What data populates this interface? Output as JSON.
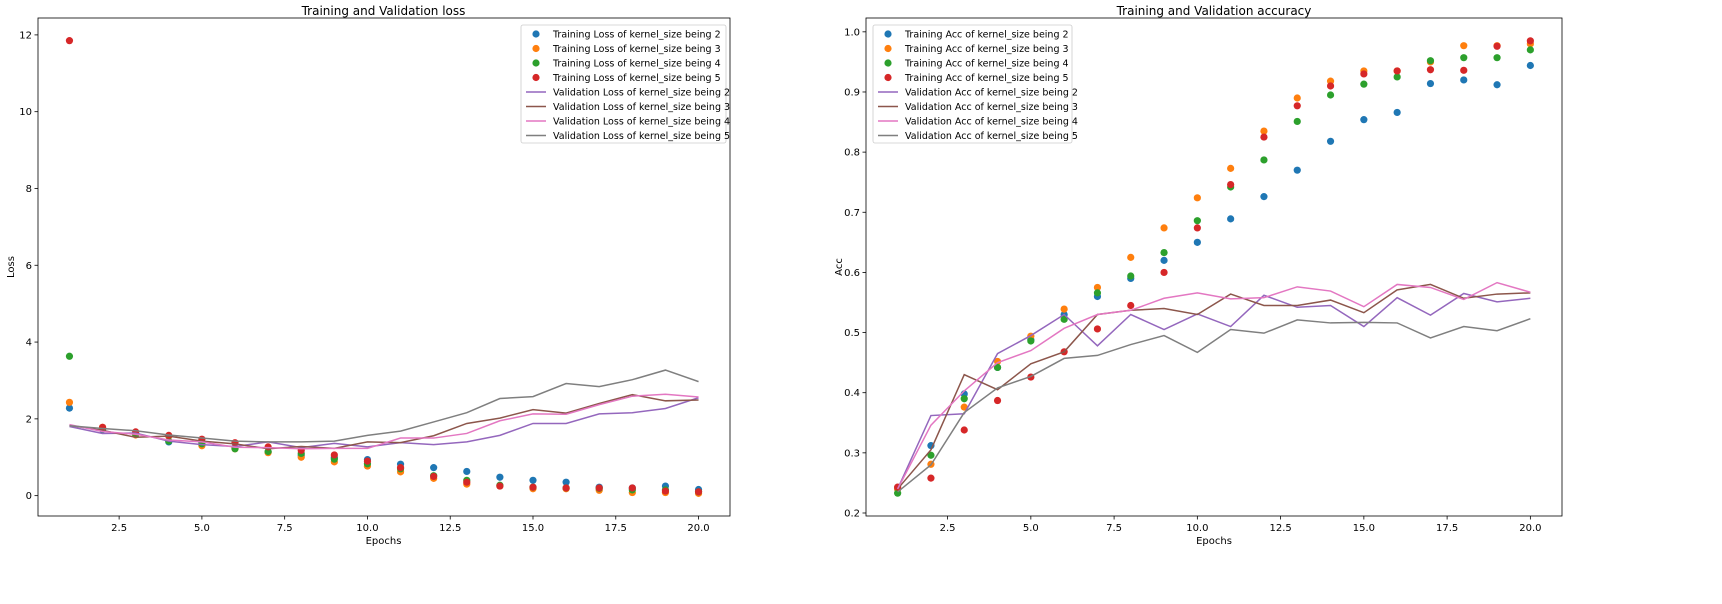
{
  "chart_data": [
    {
      "type": "scatter+line",
      "title": "Training and Validation loss",
      "xlabel": "Epochs",
      "ylabel": "Loss",
      "xlim": [
        0.05,
        20.95
      ],
      "ylim": [
        -0.53,
        12.44
      ],
      "xticks": [
        2.5,
        5.0,
        7.5,
        10.0,
        12.5,
        15.0,
        17.5,
        20.0
      ],
      "xtick_labels": [
        "2.5",
        "5.0",
        "7.5",
        "10.0",
        "12.5",
        "15.0",
        "17.5",
        "20.0"
      ],
      "yticks": [
        0,
        2,
        4,
        6,
        8,
        10,
        12
      ],
      "ytick_labels": [
        "0",
        "2",
        "4",
        "6",
        "8",
        "10",
        "12"
      ],
      "grid": false,
      "legend_position": "top-right",
      "x": [
        1,
        2,
        3,
        4,
        5,
        6,
        7,
        8,
        9,
        10,
        11,
        12,
        13,
        14,
        15,
        16,
        17,
        18,
        19,
        20
      ],
      "series": [
        {
          "name": "Training Loss of kernel_size being 2",
          "style": "markers",
          "color": "#1f77b4",
          "values": [
            2.28,
            1.72,
            1.62,
            1.4,
            1.38,
            1.25,
            1.14,
            1.05,
            0.99,
            0.94,
            0.82,
            0.73,
            0.63,
            0.48,
            0.4,
            0.35,
            0.22,
            0.2,
            0.25,
            0.16
          ]
        },
        {
          "name": "Training Loss of kernel_size being 3",
          "style": "markers",
          "color": "#ff7f0e",
          "values": [
            2.43,
            1.78,
            1.58,
            1.55,
            1.3,
            1.22,
            1.12,
            1.0,
            0.88,
            0.77,
            0.62,
            0.45,
            0.3,
            0.25,
            0.18,
            0.18,
            0.14,
            0.08,
            0.08,
            0.06
          ]
        },
        {
          "name": "Training Loss of kernel_size being 4",
          "style": "markers",
          "color": "#2ca02c",
          "values": [
            3.63,
            1.74,
            1.6,
            1.42,
            1.35,
            1.22,
            1.15,
            1.1,
            0.95,
            0.83,
            0.7,
            0.52,
            0.4,
            0.27,
            0.22,
            0.2,
            0.19,
            0.15,
            0.15,
            0.1
          ]
        },
        {
          "name": "Training Loss of kernel_size being 5",
          "style": "markers",
          "color": "#d62728",
          "values": [
            11.85,
            1.78,
            1.66,
            1.57,
            1.47,
            1.38,
            1.27,
            1.18,
            1.06,
            0.9,
            0.73,
            0.5,
            0.35,
            0.25,
            0.22,
            0.2,
            0.2,
            0.2,
            0.12,
            0.1
          ]
        },
        {
          "name": "Validation Loss of kernel_size being 2",
          "style": "line",
          "color": "#9467bd",
          "values": [
            1.8,
            1.62,
            1.63,
            1.42,
            1.33,
            1.28,
            1.4,
            1.25,
            1.36,
            1.27,
            1.38,
            1.33,
            1.4,
            1.57,
            1.88,
            1.88,
            2.13,
            2.16,
            2.27,
            2.55
          ]
        },
        {
          "name": "Validation Loss of kernel_size being 3",
          "style": "line",
          "color": "#8c564b",
          "values": [
            1.83,
            1.7,
            1.52,
            1.55,
            1.42,
            1.35,
            1.22,
            1.28,
            1.23,
            1.4,
            1.38,
            1.56,
            1.88,
            2.02,
            2.24,
            2.15,
            2.4,
            2.63,
            2.47,
            2.49
          ]
        },
        {
          "name": "Validation Loss of kernel_size being 4",
          "style": "line",
          "color": "#e377c2",
          "values": [
            1.85,
            1.67,
            1.6,
            1.45,
            1.4,
            1.26,
            1.25,
            1.22,
            1.23,
            1.23,
            1.5,
            1.5,
            1.62,
            1.95,
            2.13,
            2.12,
            2.37,
            2.59,
            2.64,
            2.57
          ]
        },
        {
          "name": "Validation Loss of kernel_size being 5",
          "style": "line",
          "color": "#7f7f7f",
          "values": [
            1.82,
            1.75,
            1.69,
            1.58,
            1.5,
            1.42,
            1.4,
            1.4,
            1.42,
            1.57,
            1.68,
            1.92,
            2.16,
            2.53,
            2.58,
            2.92,
            2.84,
            3.02,
            3.27,
            2.97
          ]
        }
      ]
    },
    {
      "type": "scatter+line",
      "title": "Training and Validation accuracy",
      "xlabel": "Epochs",
      "ylabel": "Acc",
      "xlim": [
        0.05,
        20.95
      ],
      "ylim": [
        0.195,
        1.023
      ],
      "xticks": [
        2.5,
        5.0,
        7.5,
        10.0,
        12.5,
        15.0,
        17.5,
        20.0
      ],
      "xtick_labels": [
        "2.5",
        "5.0",
        "7.5",
        "10.0",
        "12.5",
        "15.0",
        "17.5",
        "20.0"
      ],
      "yticks": [
        0.2,
        0.3,
        0.4,
        0.5,
        0.6,
        0.7,
        0.8,
        0.9,
        1.0
      ],
      "ytick_labels": [
        "0.2",
        "0.3",
        "0.4",
        "0.5",
        "0.6",
        "0.7",
        "0.8",
        "0.9",
        "1.0"
      ],
      "grid": false,
      "legend_position": "top-left",
      "x": [
        1,
        2,
        3,
        4,
        5,
        6,
        7,
        8,
        9,
        10,
        11,
        12,
        13,
        14,
        15,
        16,
        17,
        18,
        19,
        20
      ],
      "series": [
        {
          "name": "Training Acc of kernel_size being 2",
          "style": "markers",
          "color": "#1f77b4",
          "values": [
            0.24,
            0.312,
            0.398,
            0.442,
            0.488,
            0.53,
            0.56,
            0.59,
            0.62,
            0.65,
            0.689,
            0.726,
            0.77,
            0.818,
            0.854,
            0.866,
            0.914,
            0.92,
            0.912,
            0.944
          ]
        },
        {
          "name": "Training Acc of kernel_size being 3",
          "style": "markers",
          "color": "#ff7f0e",
          "values": [
            0.24,
            0.281,
            0.376,
            0.452,
            0.494,
            0.539,
            0.575,
            0.625,
            0.674,
            0.724,
            0.773,
            0.835,
            0.89,
            0.918,
            0.935,
            0.935,
            0.95,
            0.977,
            0.977,
            0.98
          ]
        },
        {
          "name": "Training Acc of kernel_size being 4",
          "style": "markers",
          "color": "#2ca02c",
          "values": [
            0.233,
            0.296,
            0.39,
            0.442,
            0.486,
            0.522,
            0.566,
            0.594,
            0.633,
            0.686,
            0.742,
            0.787,
            0.851,
            0.895,
            0.913,
            0.925,
            0.952,
            0.957,
            0.957,
            0.97
          ]
        },
        {
          "name": "Training Acc of kernel_size being 5",
          "style": "markers",
          "color": "#d62728",
          "values": [
            0.243,
            0.258,
            0.338,
            0.387,
            0.426,
            0.468,
            0.506,
            0.545,
            0.6,
            0.674,
            0.746,
            0.825,
            0.877,
            0.91,
            0.93,
            0.935,
            0.937,
            0.936,
            0.976,
            0.985
          ]
        },
        {
          "name": "Validation Acc of kernel_size being 2",
          "style": "line",
          "color": "#9467bd",
          "values": [
            0.24,
            0.362,
            0.365,
            0.465,
            0.495,
            0.53,
            0.478,
            0.53,
            0.505,
            0.531,
            0.51,
            0.562,
            0.542,
            0.545,
            0.51,
            0.558,
            0.529,
            0.565,
            0.551,
            0.557
          ]
        },
        {
          "name": "Validation Acc of kernel_size being 3",
          "style": "line",
          "color": "#8c564b",
          "values": [
            0.24,
            0.305,
            0.43,
            0.405,
            0.448,
            0.468,
            0.53,
            0.537,
            0.54,
            0.53,
            0.564,
            0.545,
            0.545,
            0.554,
            0.533,
            0.571,
            0.58,
            0.557,
            0.564,
            0.566
          ]
        },
        {
          "name": "Validation Acc of kernel_size being 4",
          "style": "line",
          "color": "#e377c2",
          "values": [
            0.24,
            0.346,
            0.403,
            0.45,
            0.47,
            0.507,
            0.53,
            0.537,
            0.557,
            0.566,
            0.556,
            0.558,
            0.576,
            0.569,
            0.543,
            0.58,
            0.575,
            0.555,
            0.583,
            0.567
          ]
        },
        {
          "name": "Validation Acc of kernel_size being 5",
          "style": "line",
          "color": "#7f7f7f",
          "values": [
            0.235,
            0.28,
            0.367,
            0.408,
            0.427,
            0.457,
            0.462,
            0.48,
            0.495,
            0.467,
            0.505,
            0.499,
            0.521,
            0.516,
            0.517,
            0.516,
            0.491,
            0.51,
            0.503,
            0.523
          ]
        }
      ]
    }
  ]
}
